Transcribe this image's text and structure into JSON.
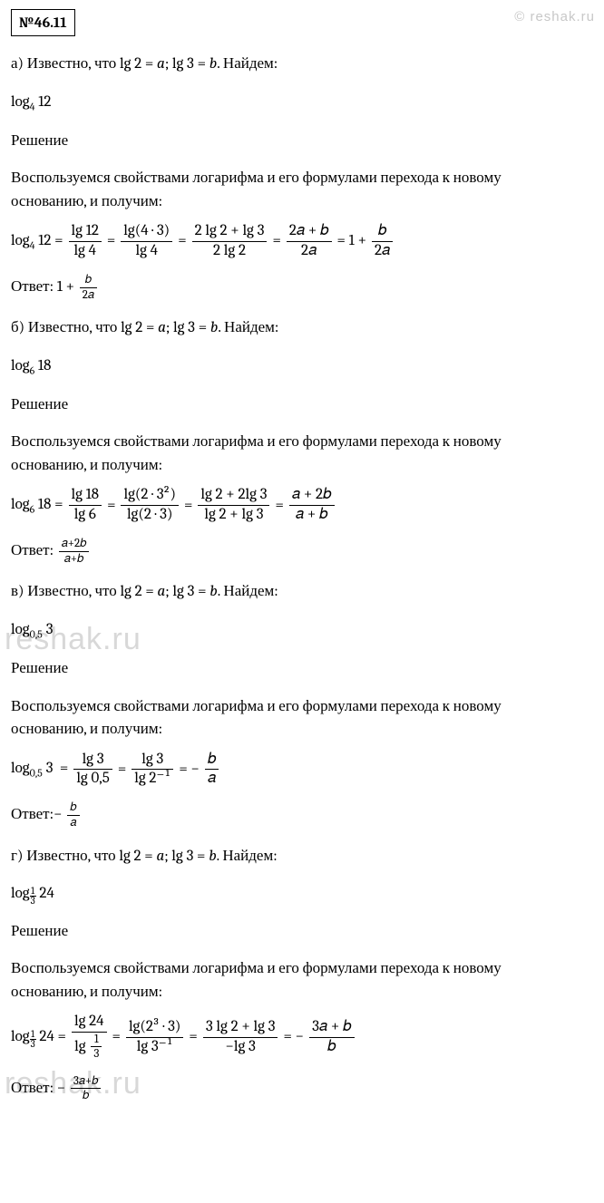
{
  "problem_number": "№46.11",
  "watermarks": {
    "top": "© reshak.ru",
    "mid": "reshak.ru",
    "low": "reshak.ru"
  },
  "labels": {
    "solution": "Решение",
    "answer": "Ответ:",
    "known_prefix": "Известно, что lg 2 = ",
    "known_mid": "; lg 3 = ",
    "known_suffix": ". Найдем:",
    "var_a": "a",
    "var_b": "b",
    "method_line1": "Воспользуемся свойствами логарифма и его формулами перехода к новому",
    "method_line2": "основанию, и получим:"
  },
  "parts": {
    "a": {
      "letter": "а)",
      "target": "log₄ 12",
      "eq_lead": "log",
      "eq_base": "4",
      "eq_arg": "12",
      "f1_num": "lg 12",
      "f1_den": "lg 4",
      "f2_num": "lg(4 · 3)",
      "f2_den": "lg 4",
      "f3_num": "2 lg 2 + lg 3",
      "f3_den": "2 lg 2",
      "f4_num": "2𝑎 + 𝑏",
      "f4_den": "2𝑎",
      "tail_plain": "= 1 +",
      "tail_frac_num": "𝑏",
      "tail_frac_den": "2𝑎",
      "answer_plain": "1 +",
      "ans_frac_num": "𝑏",
      "ans_frac_den": "2𝑎"
    },
    "b": {
      "letter": "б)",
      "target_base": "6",
      "target_arg": "18",
      "f1_num": "lg 18",
      "f1_den": "lg 6",
      "f2_num": "lg(2 · 3²)",
      "f2_den": "lg(2 · 3)",
      "f3_num": "lg 2 + 2lg 3",
      "f3_den": "lg 2 + lg 3",
      "f4_num": "𝑎 + 2𝑏",
      "f4_den": "𝑎 + 𝑏",
      "ans_frac_num": "𝑎+2𝑏",
      "ans_frac_den": "𝑎+𝑏"
    },
    "c": {
      "letter": "в)",
      "target_base": "0,5",
      "target_arg": "3",
      "f1_num": "lg 3",
      "f1_den": "lg 0,5",
      "f2_num": "lg 3",
      "f2_den": "lg 2⁻¹",
      "tail": "= −",
      "tail_frac_num": "𝑏",
      "tail_frac_den": "𝑎",
      "answer_prefix": "−",
      "ans_frac_num": "𝑏",
      "ans_frac_den": "𝑎"
    },
    "d": {
      "letter": "г)",
      "target_base_num": "1",
      "target_base_den": "3",
      "target_arg": "24",
      "f1_num": "lg 24",
      "f1_den_top": "lg",
      "f1_den_frac_num": "1",
      "f1_den_frac_den": "3",
      "f2_num": "lg(2³ · 3)",
      "f2_den": "lg 3⁻¹",
      "f3_num": "3 lg 2 + lg 3",
      "f3_den": "−lg 3",
      "tail": "= −",
      "tail_frac_num": "3𝑎 + 𝑏",
      "tail_frac_den": "𝑏",
      "answer_prefix": "−",
      "ans_frac_num": "3𝑎+𝑏",
      "ans_frac_den": "𝑏"
    }
  },
  "colors": {
    "text": "#000000",
    "background": "#ffffff",
    "watermark": "#d8d8d8"
  },
  "typography": {
    "body_fontsize": 17,
    "font_family": "Cambria"
  }
}
